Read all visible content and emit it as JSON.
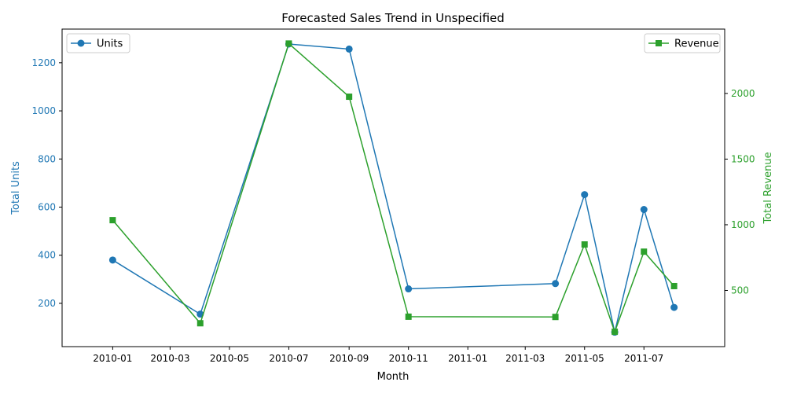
{
  "chart_data": {
    "type": "line",
    "title": "Forecasted Sales Trend in Unspecified",
    "xlabel": "Month",
    "x": [
      "2010-01",
      "2010-04",
      "2010-07",
      "2010-09",
      "2010-11",
      "2011-04",
      "2011-05",
      "2011-06",
      "2011-07",
      "2011-08"
    ],
    "x_ticks": [
      "2010-01",
      "2010-03",
      "2010-05",
      "2010-07",
      "2010-09",
      "2010-11",
      "2011-01",
      "2011-03",
      "2011-05",
      "2011-07"
    ],
    "xlim": [
      "2009-11-10",
      "2011-09-22"
    ],
    "series": [
      {
        "name": "Units",
        "axis": "left",
        "color": "#1f77b4",
        "marker": "circle",
        "values": [
          380,
          155,
          1278,
          1257,
          260,
          282,
          652,
          80,
          590,
          183
        ]
      },
      {
        "name": "Revenue",
        "axis": "right",
        "color": "#2ca02c",
        "marker": "square",
        "values": [
          1035,
          250,
          2380,
          1975,
          300,
          298,
          850,
          185,
          795,
          533
        ]
      }
    ],
    "left_axis": {
      "label": "Total Units",
      "color": "#1f77b4",
      "ylim": [
        20,
        1340
      ],
      "ticks": [
        200,
        400,
        600,
        800,
        1000,
        1200
      ]
    },
    "right_axis": {
      "label": "Total Revenue",
      "color": "#2ca02c",
      "ylim": [
        72,
        2490
      ],
      "ticks": [
        500,
        1000,
        1500,
        2000
      ]
    },
    "grid": false,
    "legend_left": "top-left",
    "legend_right": "top-right"
  }
}
